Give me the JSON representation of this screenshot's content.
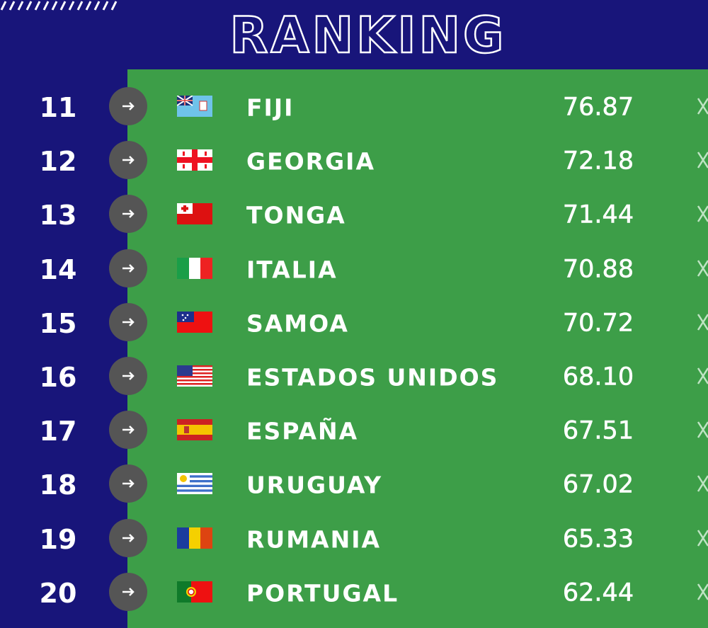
{
  "header": {
    "title": "RANKING"
  },
  "table": {
    "rows": [
      {
        "rank": 11,
        "country": "FIJI",
        "points": "76.87"
      },
      {
        "rank": 12,
        "country": "GEORGIA",
        "points": "72.18"
      },
      {
        "rank": 13,
        "country": "TONGA",
        "points": "71.44"
      },
      {
        "rank": 14,
        "country": "ITALIA",
        "points": "70.88"
      },
      {
        "rank": 15,
        "country": "SAMOA",
        "points": "70.72"
      },
      {
        "rank": 16,
        "country": "ESTADOS UNIDOS",
        "points": "68.10"
      },
      {
        "rank": 17,
        "country": "ESPAÑA",
        "points": "67.51"
      },
      {
        "rank": 18,
        "country": "URUGUAY",
        "points": "67.02"
      },
      {
        "rank": 19,
        "country": "RUMANIA",
        "points": "65.33"
      },
      {
        "rank": 20,
        "country": "PORTUGAL",
        "points": "62.44"
      }
    ]
  }
}
